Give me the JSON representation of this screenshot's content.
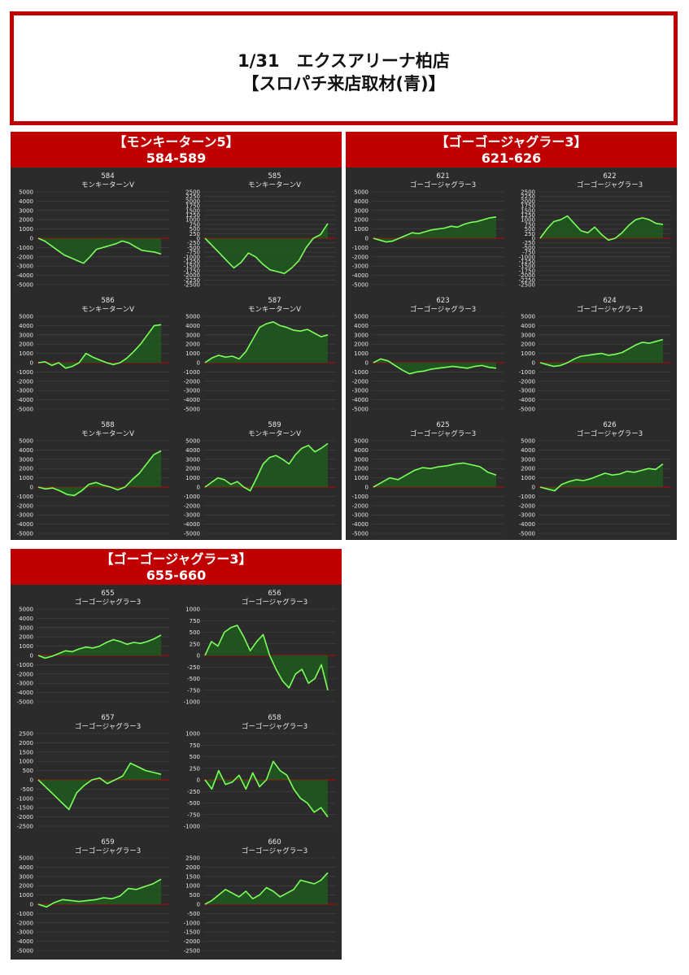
{
  "title": {
    "line1": "1/31　エクスアリーナ柏店",
    "line2": "【スロパチ来店取材(青)】"
  },
  "colors": {
    "accent": "#c00000",
    "chart_bg": "#2b2b2b",
    "line": "#7cff5a",
    "fill": "#1f5a1f",
    "zero_line": "#c00000"
  },
  "panels": [
    {
      "title": "【モンキーターン5】",
      "range": "584-589"
    },
    {
      "title": "【ゴーゴージャグラー3】",
      "range": "621-626"
    },
    {
      "title": "【ゴーゴージャグラー3】",
      "range": "655-660"
    }
  ],
  "chart_data": [
    {
      "type": "area",
      "panel": 0,
      "title": "584",
      "subtitle": "モンキーターンV",
      "ylim": [
        -5000,
        5000
      ],
      "step": 1000,
      "values": [
        0,
        -300,
        -800,
        -1300,
        -1800,
        -2100,
        -2400,
        -2700,
        -2000,
        -1200,
        -1000,
        -800,
        -600,
        -300,
        -500,
        -900,
        -1300,
        -1400,
        -1500,
        -1700
      ]
    },
    {
      "type": "area",
      "panel": 0,
      "title": "585",
      "subtitle": "モンキーターンV",
      "ylim": [
        -2500,
        2500
      ],
      "step": 250,
      "values": [
        0,
        -400,
        -800,
        -1200,
        -1600,
        -1300,
        -800,
        -1000,
        -1400,
        -1700,
        -1800,
        -1900,
        -1600,
        -1200,
        -500,
        0,
        200,
        800
      ]
    },
    {
      "type": "area",
      "panel": 0,
      "title": "586",
      "subtitle": "モンキーターンV",
      "ylim": [
        -5000,
        5000
      ],
      "step": 1000,
      "values": [
        0,
        100,
        -300,
        0,
        -600,
        -400,
        0,
        1000,
        600,
        300,
        0,
        -200,
        0,
        500,
        1200,
        2000,
        3000,
        4000,
        4100
      ]
    },
    {
      "type": "area",
      "panel": 0,
      "title": "587",
      "subtitle": "モンキーターンV",
      "ylim": [
        -5000,
        5000
      ],
      "step": 1000,
      "values": [
        0,
        500,
        800,
        600,
        700,
        400,
        1200,
        2500,
        3800,
        4200,
        4400,
        4000,
        3800,
        3500,
        3400,
        3600,
        3200,
        2800,
        3000
      ]
    },
    {
      "type": "area",
      "panel": 0,
      "title": "588",
      "subtitle": "モンキーターンV",
      "ylim": [
        -5000,
        5000
      ],
      "step": 1000,
      "values": [
        0,
        -200,
        -100,
        -400,
        -800,
        -900,
        -400,
        300,
        500,
        200,
        0,
        -300,
        0,
        800,
        1500,
        2500,
        3500,
        3900
      ]
    },
    {
      "type": "area",
      "panel": 0,
      "title": "589",
      "subtitle": "モンキーターンV",
      "ylim": [
        -5000,
        5000
      ],
      "step": 1000,
      "values": [
        0,
        500,
        1000,
        800,
        300,
        600,
        0,
        -400,
        1000,
        2500,
        3200,
        3400,
        3000,
        2500,
        3500,
        4200,
        4500,
        3800,
        4200,
        4700
      ]
    },
    {
      "type": "area",
      "panel": 1,
      "title": "621",
      "subtitle": "ゴーゴージャグラー3",
      "ylim": [
        -5000,
        5000
      ],
      "step": 1000,
      "values": [
        0,
        -200,
        -400,
        -300,
        0,
        300,
        600,
        500,
        700,
        900,
        1000,
        1100,
        1300,
        1200,
        1500,
        1700,
        1800,
        2000,
        2200,
        2300
      ]
    },
    {
      "type": "area",
      "panel": 1,
      "title": "622",
      "subtitle": "ゴーゴージャグラー3",
      "ylim": [
        -2500,
        2500
      ],
      "step": 250,
      "values": [
        0,
        500,
        900,
        1000,
        1200,
        800,
        400,
        300,
        600,
        200,
        -100,
        0,
        300,
        700,
        1000,
        1100,
        1000,
        800,
        750
      ]
    },
    {
      "type": "area",
      "panel": 1,
      "title": "623",
      "subtitle": "ゴーゴージャグラー3",
      "ylim": [
        -5000,
        5000
      ],
      "step": 1000,
      "values": [
        0,
        400,
        200,
        -300,
        -800,
        -1200,
        -1000,
        -900,
        -700,
        -600,
        -500,
        -400,
        -500,
        -600,
        -400,
        -300,
        -500,
        -600
      ]
    },
    {
      "type": "area",
      "panel": 1,
      "title": "624",
      "subtitle": "ゴーゴージャグラー3",
      "ylim": [
        -5000,
        5000
      ],
      "step": 1000,
      "values": [
        0,
        -200,
        -400,
        -300,
        0,
        400,
        700,
        800,
        900,
        1000,
        800,
        900,
        1100,
        1500,
        1900,
        2200,
        2100,
        2300,
        2500
      ]
    },
    {
      "type": "area",
      "panel": 1,
      "title": "625",
      "subtitle": "ゴーゴージャグラー3",
      "ylim": [
        -5000,
        5000
      ],
      "step": 1000,
      "values": [
        0,
        500,
        1000,
        800,
        1300,
        1800,
        2100,
        2000,
        2200,
        2300,
        2500,
        2600,
        2400,
        2200,
        1600,
        1300
      ]
    },
    {
      "type": "area",
      "panel": 1,
      "title": "626",
      "subtitle": "ゴーゴージャグラー3",
      "ylim": [
        -5000,
        5000
      ],
      "step": 1000,
      "values": [
        0,
        -200,
        -400,
        300,
        600,
        800,
        700,
        900,
        1200,
        1500,
        1300,
        1400,
        1700,
        1600,
        1800,
        2000,
        1900,
        2500
      ]
    },
    {
      "type": "area",
      "panel": 2,
      "title": "655",
      "subtitle": "ゴーゴージャグラー3",
      "ylim": [
        -5000,
        5000
      ],
      "step": 1000,
      "values": [
        0,
        -300,
        -100,
        200,
        500,
        400,
        700,
        900,
        800,
        1000,
        1400,
        1700,
        1500,
        1200,
        1400,
        1300,
        1500,
        1800,
        2200
      ]
    },
    {
      "type": "area",
      "panel": 2,
      "title": "656",
      "subtitle": "ゴーゴージャグラー3",
      "ylim": [
        -1000,
        1000
      ],
      "step": 250,
      "values": [
        0,
        300,
        200,
        500,
        600,
        650,
        400,
        100,
        300,
        450,
        0,
        -300,
        -550,
        -700,
        -400,
        -300,
        -600,
        -500,
        -200,
        -750
      ]
    },
    {
      "type": "area",
      "panel": 2,
      "title": "657",
      "subtitle": "ゴーゴージャグラー3",
      "ylim": [
        -2500,
        2500
      ],
      "step": 500,
      "values": [
        0,
        -400,
        -800,
        -1200,
        -1600,
        -700,
        -300,
        0,
        100,
        -200,
        0,
        200,
        900,
        700,
        500,
        400,
        300
      ]
    },
    {
      "type": "area",
      "panel": 2,
      "title": "658",
      "subtitle": "ゴーゴージャグラー3",
      "ylim": [
        -1000,
        1000
      ],
      "step": 250,
      "values": [
        0,
        -200,
        200,
        -100,
        -50,
        100,
        -200,
        150,
        -150,
        0,
        400,
        200,
        100,
        -200,
        -400,
        -500,
        -700,
        -600,
        -800
      ]
    },
    {
      "type": "area",
      "panel": 2,
      "title": "659",
      "subtitle": "ゴーゴージャグラー3",
      "ylim": [
        -5000,
        5000
      ],
      "step": 1000,
      "values": [
        0,
        -300,
        200,
        500,
        400,
        300,
        400,
        500,
        700,
        600,
        900,
        1700,
        1600,
        1900,
        2200,
        2700
      ]
    },
    {
      "type": "area",
      "panel": 2,
      "title": "660",
      "subtitle": "ゴーゴージャグラー3",
      "ylim": [
        -2500,
        2500
      ],
      "step": 500,
      "values": [
        0,
        200,
        500,
        800,
        600,
        400,
        700,
        300,
        500,
        900,
        700,
        400,
        600,
        800,
        1300,
        1200,
        1100,
        1300,
        1700
      ]
    }
  ]
}
